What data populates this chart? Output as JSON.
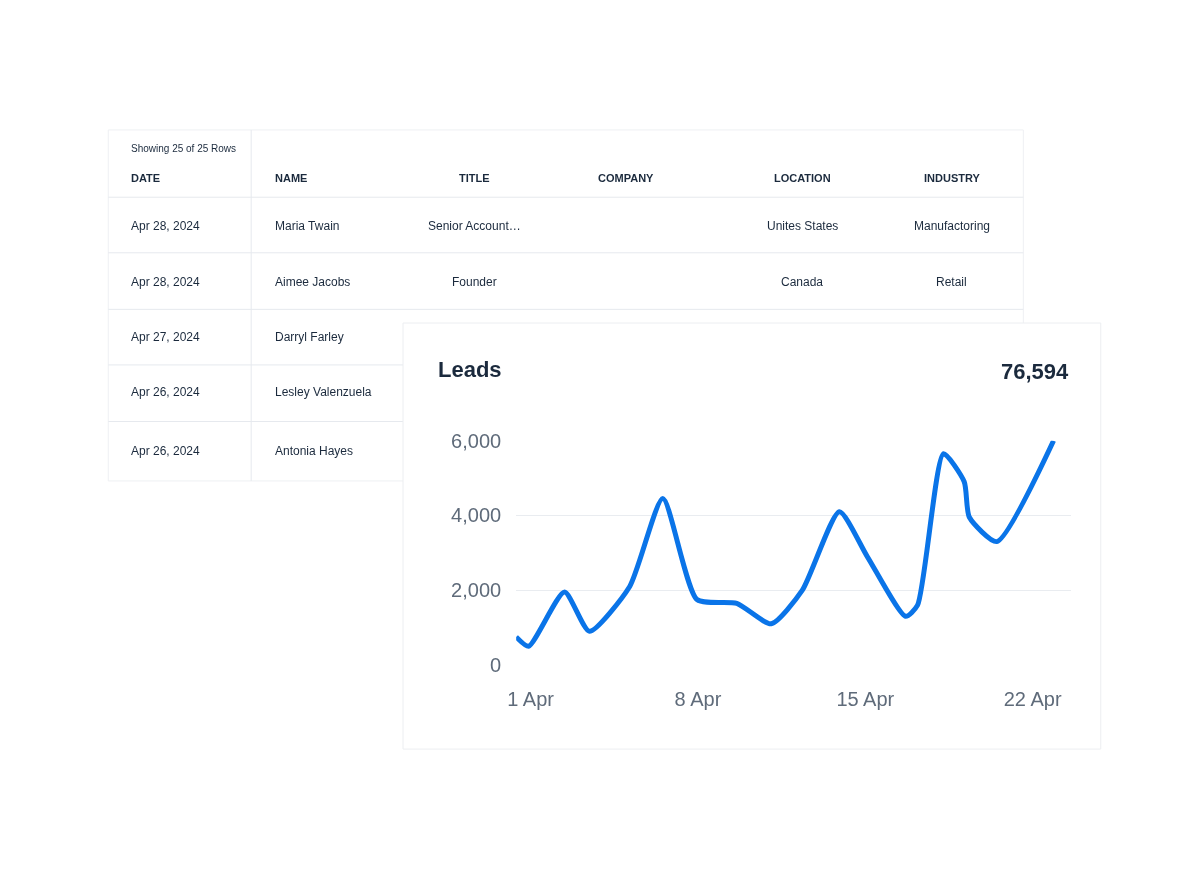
{
  "chart_data": [
    {
      "type": "other",
      "title": "Showing 25 of 25 Rows",
      "categories": [
        "DATE",
        "NAME",
        "TITLE",
        "COMPANY",
        "LOCATION",
        "INDUSTRY"
      ],
      "cell_labels": [
        [
          "Apr 28, 2024",
          "Maria Twain",
          "Senior Account…",
          null,
          "Unites States",
          "Manufactoring"
        ],
        [
          "Apr 28, 2024",
          "Aimee Jacobs",
          "Founder",
          null,
          "Canada",
          "Retail"
        ],
        [
          "Apr 27, 2024",
          "Darryl Farley",
          null,
          null,
          null,
          null
        ],
        [
          "Apr 26, 2024",
          "Lesley Valenzuela",
          null,
          null,
          null,
          null
        ],
        [
          "Apr 26, 2024",
          "Antonia Hayes",
          null,
          null,
          null,
          null
        ]
      ]
    },
    {
      "type": "line",
      "title": "Leads",
      "annotations": [
        "76,594"
      ],
      "x": [
        "--03-31T09:30",
        "--03-31T22:00",
        "--04-02T10:00",
        "--04-03T11:00",
        "--04-05T03:30",
        "--04-06T12:45",
        "--04-07T23:00",
        "--04-09T15:00",
        "--04-11T01:40",
        "--04-12T08:50",
        "--04-13T22:00",
        "--04-15T02:00",
        "--04-16T16:30",
        "--04-17T04:30",
        "--04-18T06:30",
        "--04-19T03:20",
        "--04-19T08:30",
        "--04-20T12:00",
        "--04-22T21:00"
      ],
      "series": [
        {
          "color": "#0a74e8",
          "values": [
            750,
            500,
            1950,
            900,
            2100,
            4450,
            1750,
            1650,
            1100,
            2000,
            4100,
            2900,
            1300,
            1600,
            5650,
            4900,
            3950,
            3300,
            6000
          ]
        }
      ],
      "xlim": [
        "--03-31T09:30",
        "--04-23T14:30"
      ],
      "xticks": [
        {
          "value": "--04-01",
          "label": "1 Apr"
        },
        {
          "value": "--04-08",
          "label": "8 Apr"
        },
        {
          "value": "--04-15",
          "label": "15 Apr"
        },
        {
          "value": "--04-22",
          "label": "22 Apr"
        }
      ],
      "ylim": [
        0,
        6000
      ],
      "yticks": [
        0,
        {
          "value": 2000,
          "label": "2,000"
        },
        {
          "value": 4000,
          "label": "4,000"
        },
        {
          "value": 6000,
          "label": "6,000"
        }
      ],
      "grid": "y",
      "marker": "none",
      "line_style": "solid"
    }
  ]
}
